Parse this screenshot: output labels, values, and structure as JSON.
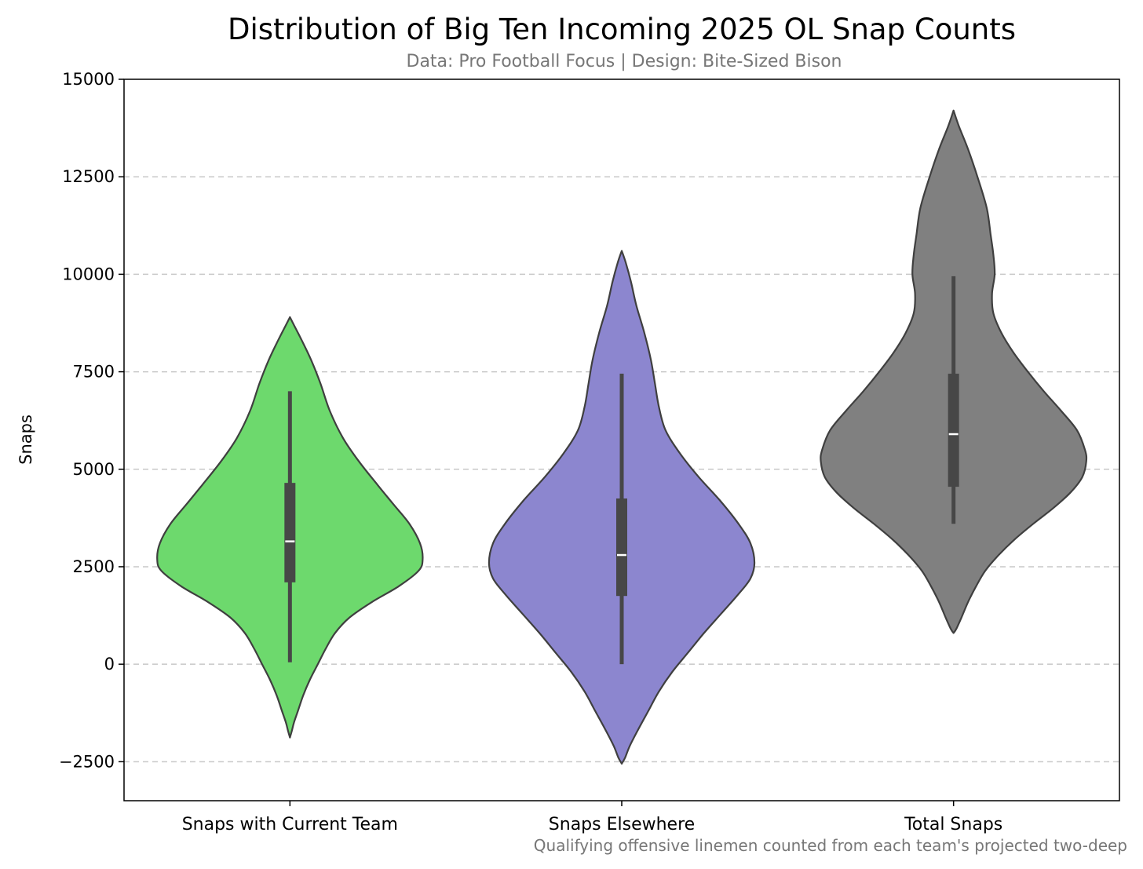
{
  "chart_data": {
    "type": "violin",
    "title": "Distribution of Big Ten Incoming 2025 OL Snap Counts",
    "subtitle": "Data: Pro Football Focus | Design: Bite-Sized Bison",
    "caption": "Qualifying offensive linemen counted from each team's projected two-deep",
    "xlabel": "",
    "ylabel": "Snaps",
    "ylim": [
      -3500,
      15000
    ],
    "yticks": [
      -2500,
      0,
      2500,
      5000,
      7500,
      10000,
      12500,
      15000
    ],
    "ytick_labels": [
      "−2500",
      "0",
      "2500",
      "5000",
      "7500",
      "10000",
      "12500",
      "15000"
    ],
    "grid": "y-dashed",
    "categories": [
      "Snaps with Current Team",
      "Snaps Elsewhere",
      "Total Snaps"
    ],
    "series": [
      {
        "color": "#6dd96d",
        "median": 3150,
        "q1": 2100,
        "q3": 4650,
        "whisker_low": 50,
        "whisker_high": 7000,
        "density": [
          [
            8900,
            0
          ],
          [
            8700,
            0.03
          ],
          [
            8300,
            0.09
          ],
          [
            7800,
            0.16
          ],
          [
            7200,
            0.23
          ],
          [
            6500,
            0.3
          ],
          [
            5800,
            0.4
          ],
          [
            5200,
            0.52
          ],
          [
            4600,
            0.66
          ],
          [
            4100,
            0.78
          ],
          [
            3600,
            0.9
          ],
          [
            3100,
            0.98
          ],
          [
            2700,
            1.0
          ],
          [
            2400,
            0.97
          ],
          [
            2000,
            0.82
          ],
          [
            1600,
            0.62
          ],
          [
            1200,
            0.45
          ],
          [
            800,
            0.34
          ],
          [
            400,
            0.27
          ],
          [
            0,
            0.21
          ],
          [
            -400,
            0.15
          ],
          [
            -800,
            0.1
          ],
          [
            -1200,
            0.06
          ],
          [
            -1500,
            0.03
          ],
          [
            -1700,
            0.015
          ],
          [
            -1880,
            0
          ]
        ]
      },
      {
        "color": "#8c86cf",
        "median": 2800,
        "q1": 1750,
        "q3": 4250,
        "whisker_low": 0,
        "whisker_high": 7450,
        "density": [
          [
            10600,
            0
          ],
          [
            10300,
            0.03
          ],
          [
            9800,
            0.07
          ],
          [
            9200,
            0.11
          ],
          [
            8500,
            0.17
          ],
          [
            7800,
            0.22
          ],
          [
            7200,
            0.25
          ],
          [
            6600,
            0.28
          ],
          [
            6000,
            0.33
          ],
          [
            5400,
            0.44
          ],
          [
            4800,
            0.58
          ],
          [
            4200,
            0.74
          ],
          [
            3600,
            0.88
          ],
          [
            3100,
            0.97
          ],
          [
            2600,
            1.0
          ],
          [
            2200,
            0.97
          ],
          [
            1800,
            0.88
          ],
          [
            1300,
            0.75
          ],
          [
            800,
            0.62
          ],
          [
            300,
            0.5
          ],
          [
            -200,
            0.38
          ],
          [
            -700,
            0.28
          ],
          [
            -1200,
            0.2
          ],
          [
            -1700,
            0.12
          ],
          [
            -2100,
            0.06
          ],
          [
            -2400,
            0.025
          ],
          [
            -2550,
            0
          ]
        ]
      },
      {
        "color": "#808080",
        "median": 5900,
        "q1": 4550,
        "q3": 7450,
        "whisker_low": 3600,
        "whisker_high": 9950,
        "density": [
          [
            14200,
            0
          ],
          [
            13800,
            0.04
          ],
          [
            13200,
            0.11
          ],
          [
            12500,
            0.18
          ],
          [
            11700,
            0.25
          ],
          [
            11000,
            0.28
          ],
          [
            10500,
            0.3
          ],
          [
            10000,
            0.31
          ],
          [
            9500,
            0.29
          ],
          [
            9000,
            0.3
          ],
          [
            8500,
            0.36
          ],
          [
            8000,
            0.45
          ],
          [
            7500,
            0.56
          ],
          [
            7000,
            0.68
          ],
          [
            6500,
            0.81
          ],
          [
            6000,
            0.93
          ],
          [
            5500,
            0.99
          ],
          [
            5200,
            1.0
          ],
          [
            4800,
            0.97
          ],
          [
            4400,
            0.88
          ],
          [
            4000,
            0.75
          ],
          [
            3600,
            0.6
          ],
          [
            3200,
            0.46
          ],
          [
            2800,
            0.34
          ],
          [
            2400,
            0.24
          ],
          [
            2000,
            0.17
          ],
          [
            1600,
            0.11
          ],
          [
            1200,
            0.06
          ],
          [
            900,
            0.02
          ],
          [
            800,
            0
          ]
        ]
      }
    ]
  }
}
